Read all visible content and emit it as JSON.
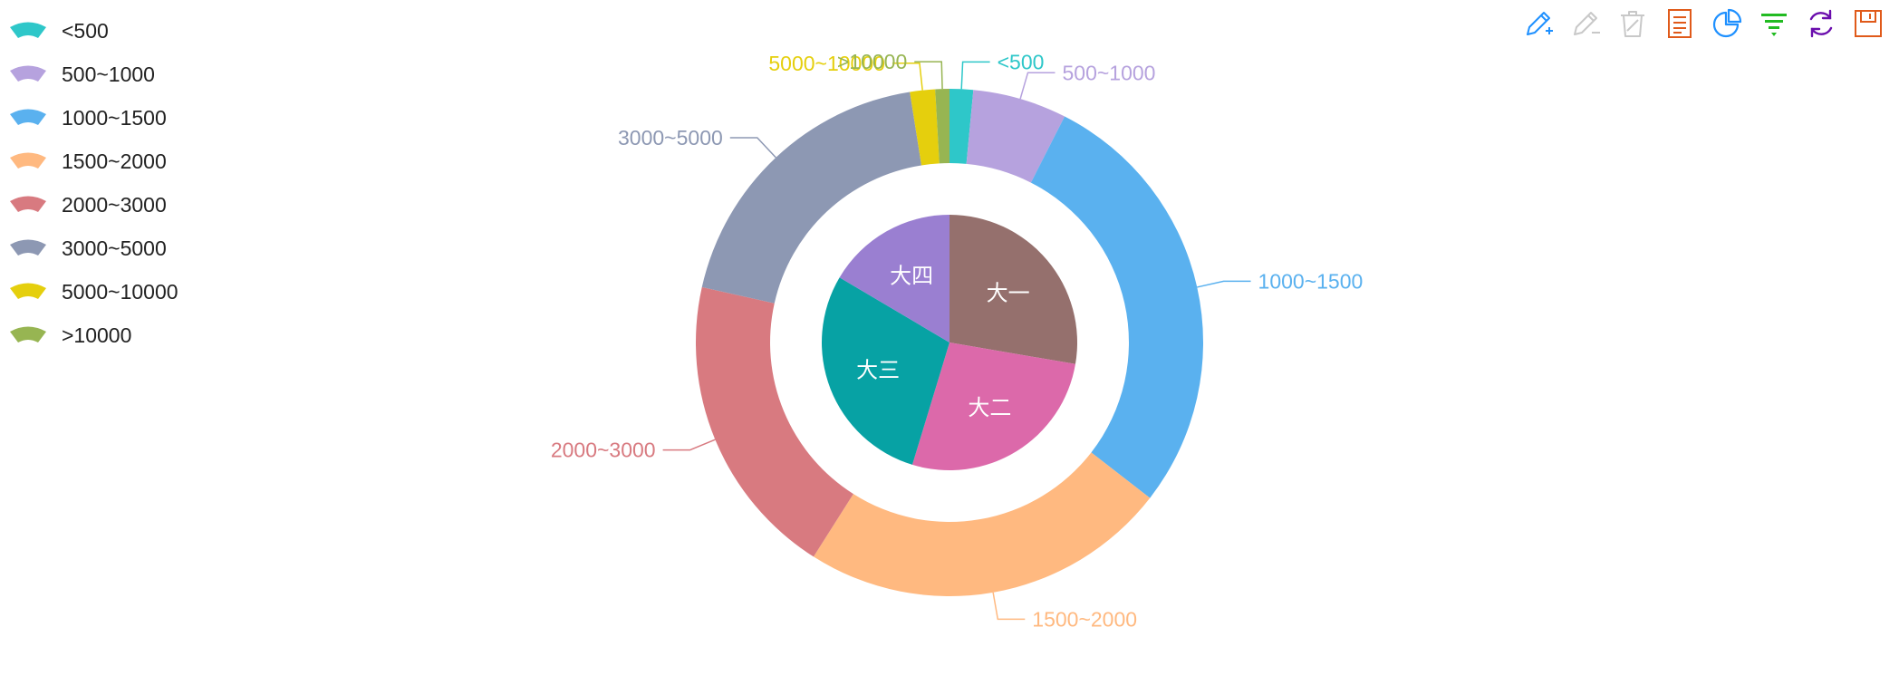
{
  "chart_data": {
    "type": "pie",
    "title": "",
    "inner_ring": {
      "series_name": "",
      "data": [
        {
          "name": "大一",
          "value": 27.7,
          "color": "#95706d"
        },
        {
          "name": "大二",
          "value": 27.0,
          "color": "#dc69aa"
        },
        {
          "name": "大三",
          "value": 28.8,
          "color": "#07a2a4"
        },
        {
          "name": "大四",
          "value": 16.5,
          "color": "#9a7fd1"
        }
      ]
    },
    "outer_ring": {
      "series_name": "",
      "data": [
        {
          "name": "<500",
          "value": 1.5,
          "color": "#2ec7c9"
        },
        {
          "name": "500~1000",
          "value": 6.0,
          "color": "#b6a2de"
        },
        {
          "name": "1000~1500",
          "value": 28.0,
          "color": "#5ab1ef"
        },
        {
          "name": "1500~2000",
          "value": 23.5,
          "color": "#ffb980"
        },
        {
          "name": "2000~3000",
          "value": 19.5,
          "color": "#d87a80"
        },
        {
          "name": "3000~5000",
          "value": 19.0,
          "color": "#8d98b3"
        },
        {
          "name": "5000~10000",
          "value": 1.6,
          "color": "#e5cf0d"
        },
        {
          "name": ">10000",
          "value": 0.9,
          "color": "#97b552"
        }
      ]
    },
    "legend": {
      "position": "top-left",
      "orient": "vertical",
      "items": [
        "<500",
        "500~1000",
        "1000~1500",
        "1500~2000",
        "2000~3000",
        "3000~5000",
        "5000~10000",
        ">10000"
      ]
    }
  },
  "toolbox": [
    {
      "icon": "pencil-plus-icon",
      "color": "#1e90ff"
    },
    {
      "icon": "pencil-minus-icon",
      "color": "#c8c8c8"
    },
    {
      "icon": "trash-icon",
      "color": "#c8c8c8"
    },
    {
      "icon": "data-view-icon",
      "color": "#e05a1a"
    },
    {
      "icon": "pie-chart-icon",
      "color": "#1e90ff"
    },
    {
      "icon": "funnel-icon",
      "color": "#22bb22"
    },
    {
      "icon": "refresh-icon",
      "color": "#6a0dad"
    },
    {
      "icon": "save-icon",
      "color": "#e05a1a"
    }
  ]
}
